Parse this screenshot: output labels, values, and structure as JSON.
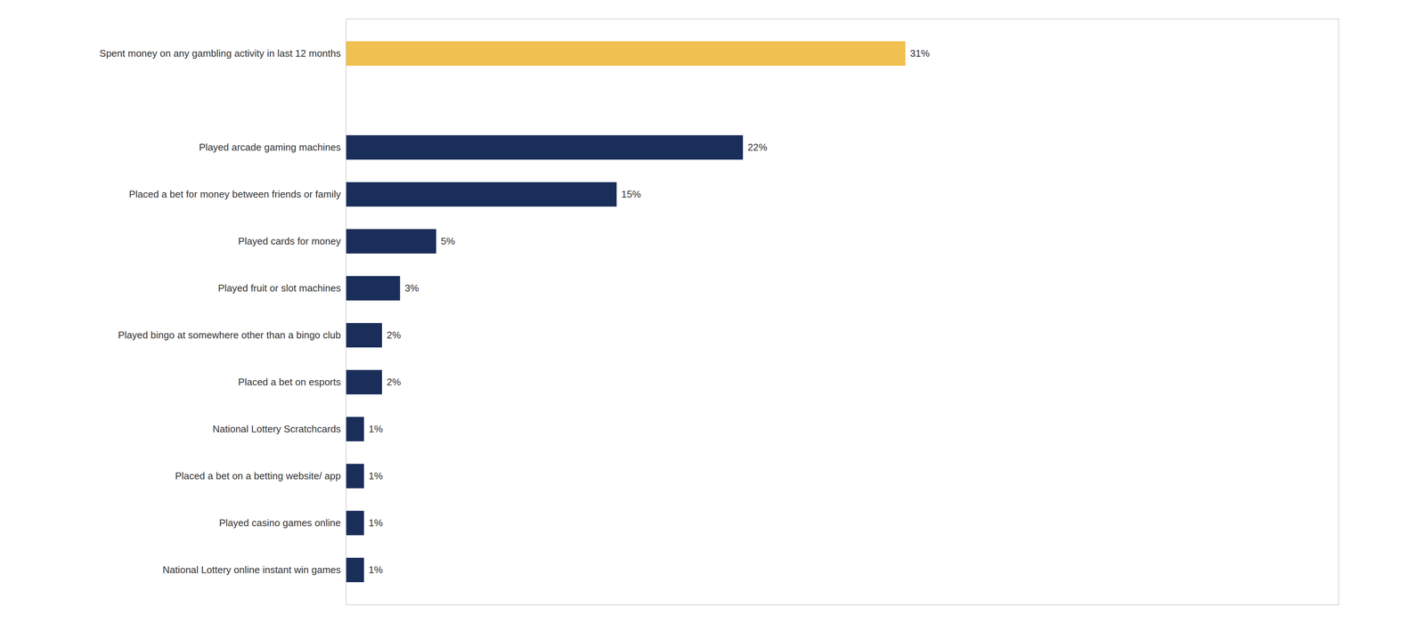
{
  "chart_data": {
    "type": "bar",
    "orientation": "horizontal",
    "categories": [
      "National Lottery online instant win games",
      "Played casino games online",
      "Placed a bet on a betting website/ app",
      "National Lottery Scratchcards",
      "Placed a bet on esports",
      "Played bingo at somewhere other than a bingo club",
      "Played fruit or slot machines",
      "Played cards for money",
      "Placed a bet for money between friends or family",
      "Played arcade gaming machines",
      null,
      "Spent money on any gambling activity in last 12 months"
    ],
    "values": [
      1,
      1,
      1,
      1,
      2,
      2,
      3,
      5,
      15,
      22,
      0,
      31
    ],
    "value_labels": [
      "1%",
      "1%",
      "1%",
      "1%",
      "2%",
      "2%",
      "3%",
      "5%",
      "15%",
      "22%",
      null,
      "31%"
    ],
    "colors": [
      "#1a2e5a",
      "#1a2e5a",
      "#1a2e5a",
      "#1a2e5a",
      "#1a2e5a",
      "#1a2e5a",
      "#1a2e5a",
      "#1a2e5a",
      "#1a2e5a",
      "#1a2e5a",
      "#ffffff",
      "#f0c050"
    ],
    "xlim": [
      0,
      55
    ],
    "data_labels": true,
    "tick_labels": "y",
    "grid": false
  }
}
